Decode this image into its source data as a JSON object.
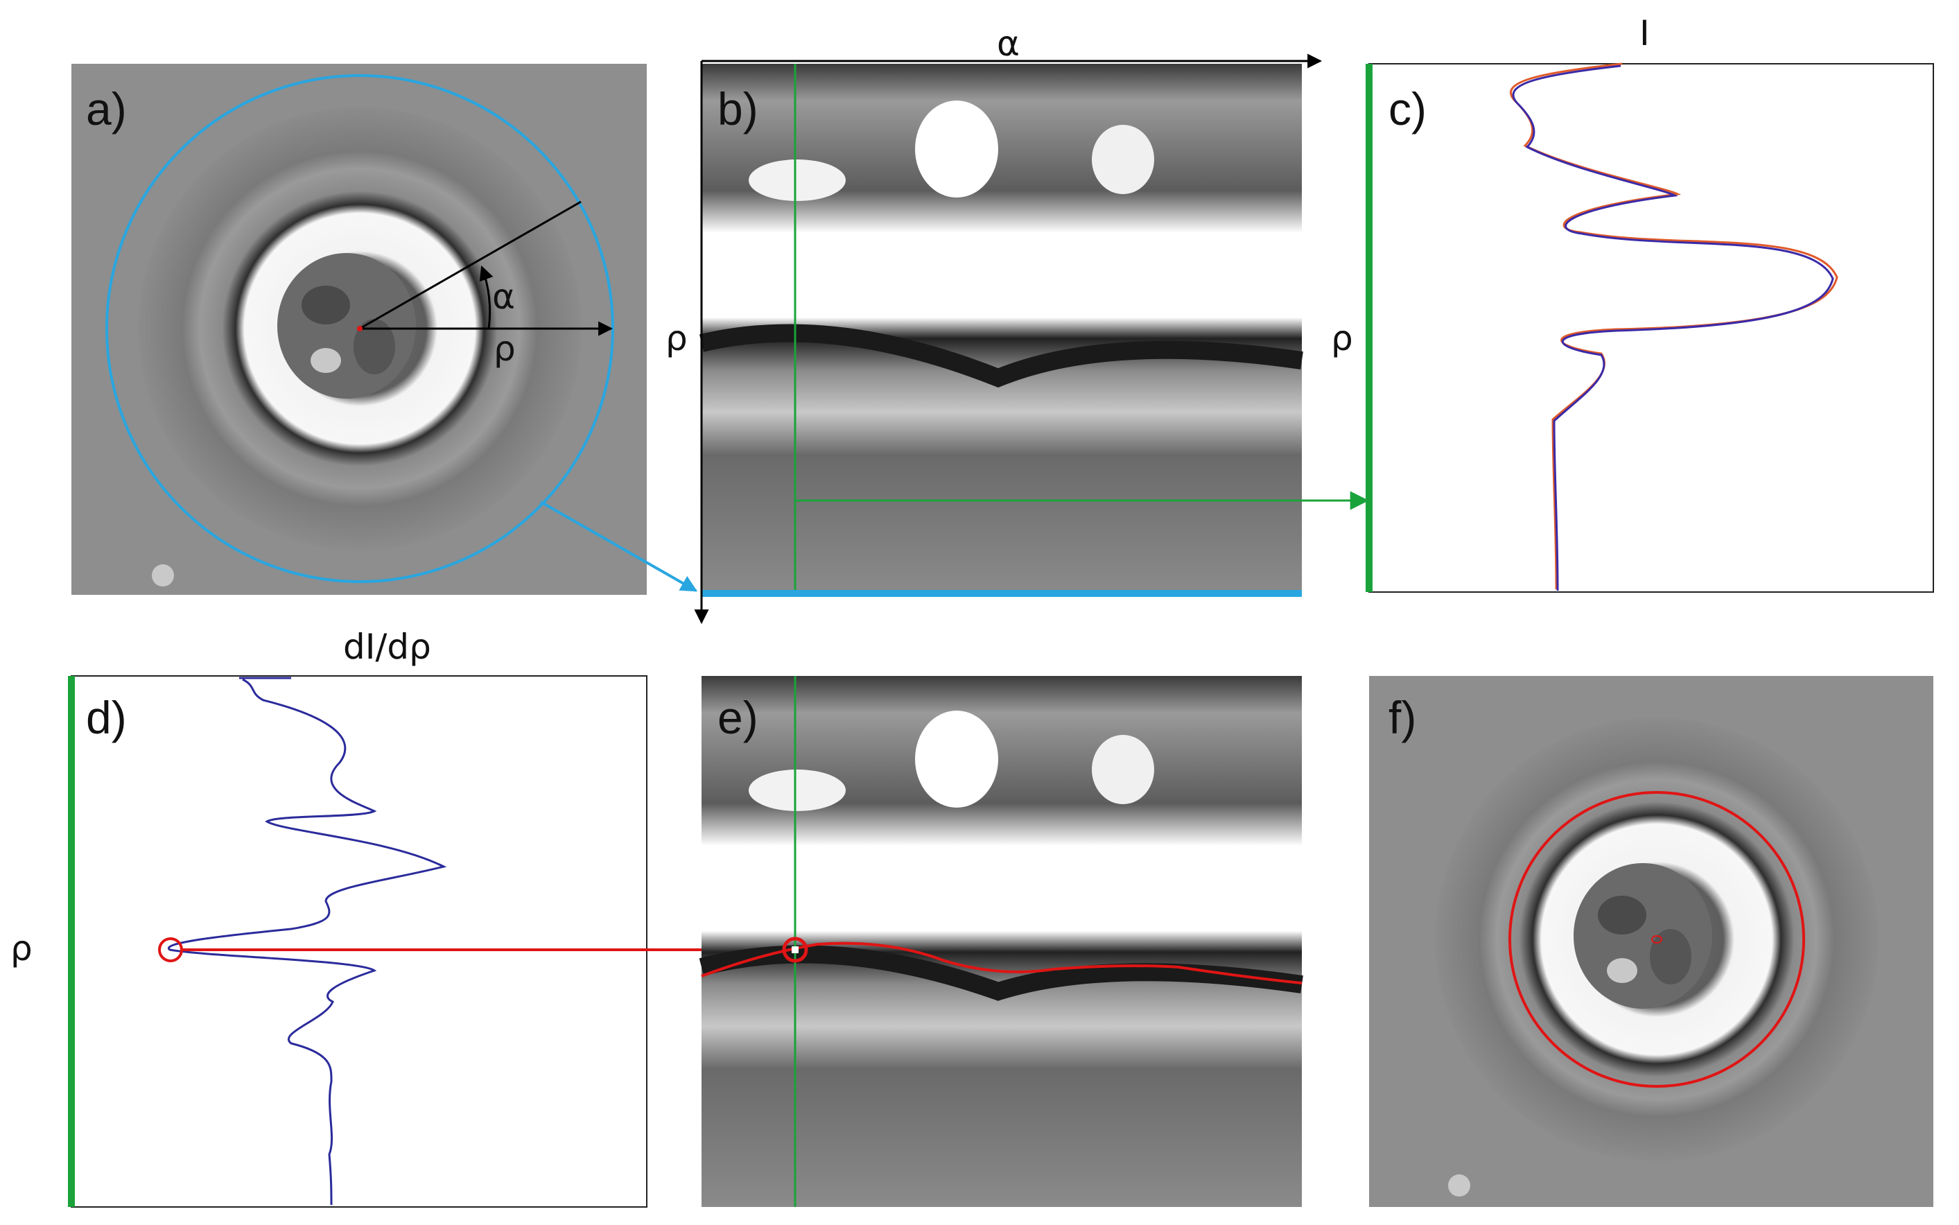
{
  "panels": {
    "a": {
      "label": "a)",
      "alpha": "α",
      "rho": "ρ"
    },
    "b": {
      "label": "b)",
      "alpha": "α",
      "rho": "ρ"
    },
    "c": {
      "label": "c)",
      "intensity": "I",
      "rho": "ρ"
    },
    "d": {
      "label": "d)",
      "derivative": "dI/dρ",
      "rho": "ρ"
    },
    "e": {
      "label": "e)"
    },
    "f": {
      "label": "f)"
    }
  },
  "colors": {
    "unwrap_circle": "#29a6e0",
    "column_marker": "#1aa33a",
    "edge_detection": "#e01515",
    "profile_raw": "#e05a2a",
    "profile_fit": "#3a2aa8",
    "arrow": "#000000"
  },
  "icons": {
    "cell_image": "grayscale-microscope-cell",
    "unwrapped_image": "grayscale-polar-unwrapped"
  }
}
